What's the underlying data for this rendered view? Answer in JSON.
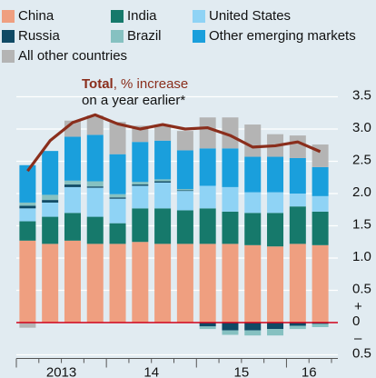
{
  "chart_data": {
    "type": "stacked_bar",
    "annotation": {
      "bold": "Total",
      "rest1": ", % increase",
      "rest2": "on a year earlier*"
    },
    "categories": [
      null,
      null,
      null,
      null,
      null,
      null,
      null,
      null,
      null,
      null,
      null,
      null,
      null,
      null
    ],
    "year_labels": [
      "2013",
      "14",
      "15",
      "16"
    ],
    "series": [
      {
        "name": "China",
        "color": "#ef9f80",
        "values": [
          1.27,
          1.22,
          1.27,
          1.22,
          1.22,
          1.25,
          1.22,
          1.22,
          1.22,
          1.22,
          1.2,
          1.18,
          1.22,
          1.2
        ]
      },
      {
        "name": "India",
        "color": "#16796b",
        "values": [
          0.3,
          0.42,
          0.43,
          0.42,
          0.32,
          0.52,
          0.55,
          0.52,
          0.55,
          0.5,
          0.5,
          0.52,
          0.58,
          0.52
        ]
      },
      {
        "name": "United States",
        "color": "#8fd3f5",
        "values": [
          0.2,
          0.22,
          0.4,
          0.45,
          0.38,
          0.35,
          0.4,
          0.3,
          0.35,
          0.38,
          0.32,
          0.32,
          0.2,
          0.24
        ]
      },
      {
        "name": "Russia",
        "color": "#0f4a65",
        "values": [
          0.04,
          0.04,
          0.04,
          0.02,
          0.02,
          0.02,
          0.02,
          0.01,
          -0.06,
          -0.12,
          -0.12,
          -0.1,
          -0.05,
          -0.02
        ]
      },
      {
        "name": "Brazil",
        "color": "#86c1c1",
        "values": [
          0.05,
          0.08,
          0.06,
          0.08,
          0.05,
          0.04,
          0.03,
          0.02,
          -0.04,
          -0.07,
          -0.08,
          -0.1,
          -0.05,
          -0.05
        ]
      },
      {
        "name": "Other emerging markets",
        "color": "#1a9fdc",
        "values": [
          0.58,
          0.68,
          0.68,
          0.72,
          0.62,
          0.62,
          0.6,
          0.6,
          0.58,
          0.6,
          0.55,
          0.55,
          0.55,
          0.45
        ]
      },
      {
        "name": "All other countries",
        "color": "#b4b4b4",
        "values": [
          -0.08,
          0.0,
          0.25,
          0.3,
          0.5,
          0.25,
          0.25,
          0.3,
          0.48,
          0.48,
          0.5,
          0.35,
          0.35,
          0.35
        ]
      }
    ],
    "line": {
      "color": "#8a2e1c",
      "values": [
        2.35,
        2.82,
        3.1,
        3.22,
        3.08,
        3.0,
        3.07,
        3.0,
        3.02,
        2.9,
        2.72,
        2.74,
        2.8,
        2.65
      ]
    },
    "ylim": [
      -0.5,
      3.5
    ],
    "yticks": [
      {
        "value": -0.5,
        "label": "0.5"
      },
      0,
      0.5,
      {
        "value": 1,
        "label": "1.0"
      },
      1.5,
      {
        "value": 2,
        "label": "2.0"
      },
      2.5,
      {
        "value": 3,
        "label": "3.0"
      },
      3.5
    ],
    "sign_labels": [
      "+",
      "–"
    ],
    "zero_line_color": "#d0021b",
    "grid": true
  }
}
